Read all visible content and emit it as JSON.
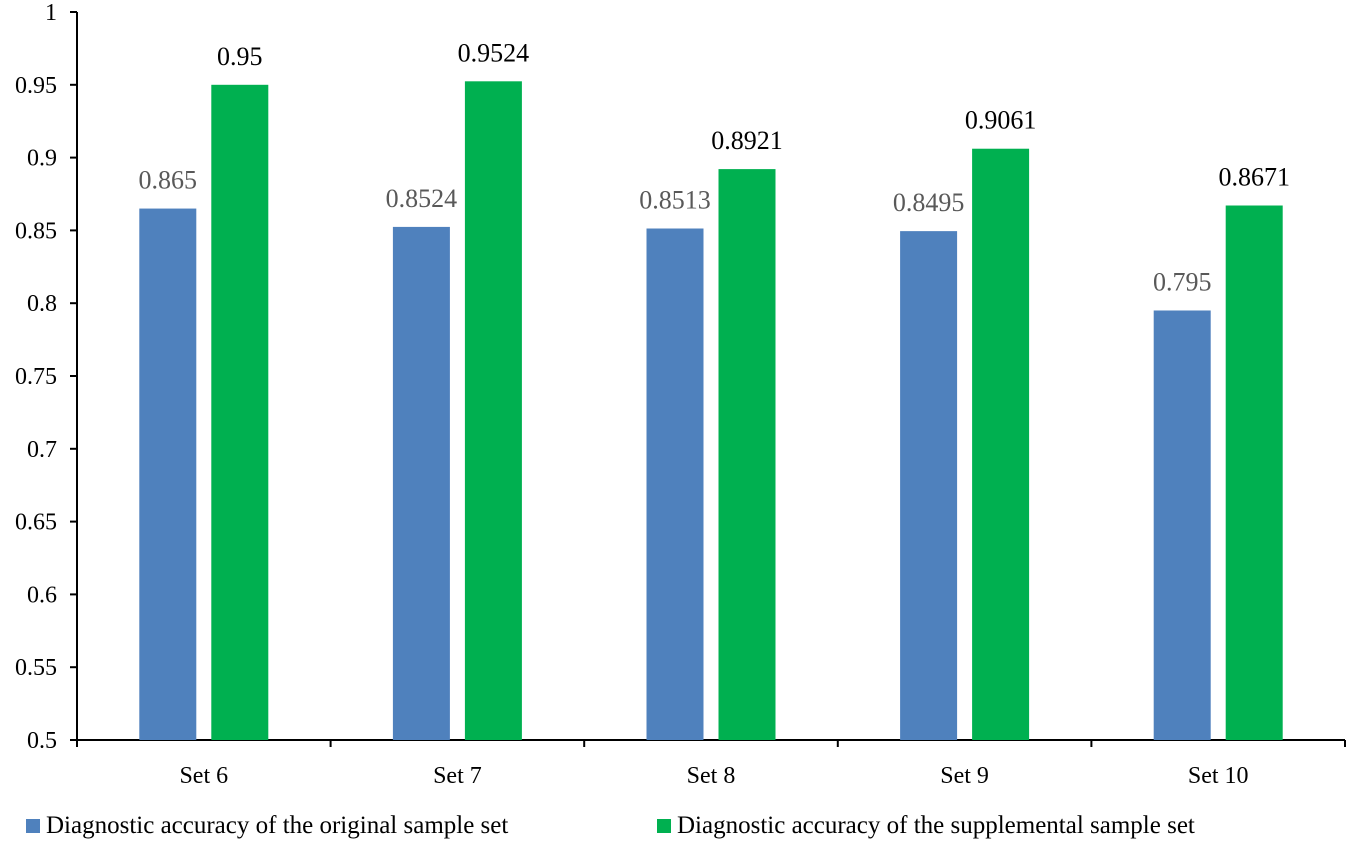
{
  "chart_data": {
    "type": "bar",
    "categories": [
      "Set 6",
      "Set 7",
      "Set 8",
      "Set 9",
      "Set 10"
    ],
    "series": [
      {
        "name": "Diagnostic accuracy of the original sample set",
        "values": [
          0.865,
          0.8524,
          0.8513,
          0.8495,
          0.795
        ],
        "labels": [
          "0.865",
          "0.8524",
          "0.8513",
          "0.8495",
          "0.795"
        ],
        "color": "#4F81BD"
      },
      {
        "name": "Diagnostic accuracy of the supplemental sample set",
        "values": [
          0.95,
          0.9524,
          0.8921,
          0.9061,
          0.8671
        ],
        "labels": [
          "0.95",
          "0.9524",
          "0.8921",
          "0.9061",
          "0.8671"
        ],
        "color": "#00B050"
      }
    ],
    "ylim": [
      0.5,
      1
    ],
    "yticks": [
      "0.5",
      "0.55",
      "0.6",
      "0.65",
      "0.7",
      "0.75",
      "0.8",
      "0.85",
      "0.9",
      "0.95",
      "1"
    ],
    "legend_position": "bottom",
    "grid": false,
    "title": "",
    "xlabel": "",
    "ylabel": ""
  }
}
